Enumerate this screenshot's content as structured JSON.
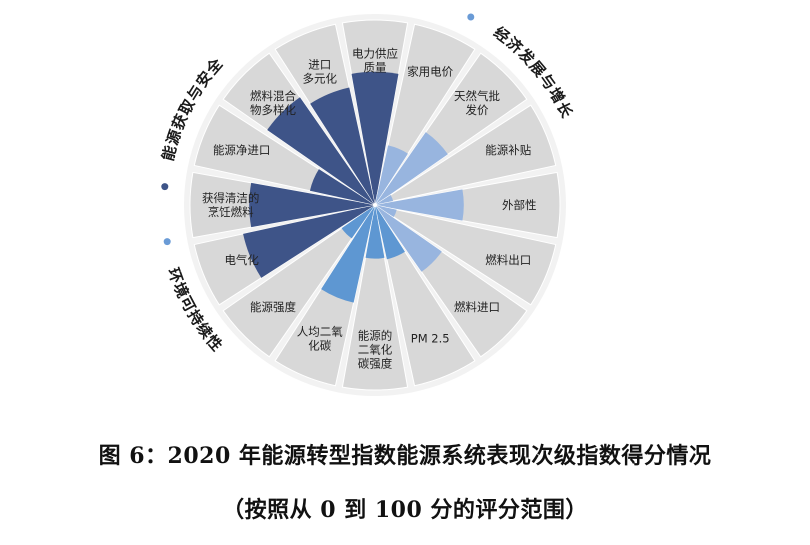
{
  "caption": {
    "line1": "图 6：2020 年能源转型指数能源系统表现次级指数得分情况",
    "line2": "（按照从 0 到 100 分的评分范围）"
  },
  "colors": {
    "wedge_background": "#d8d8d8",
    "dark": "#3e5488",
    "medium": "#5e97d2",
    "light": "#98b5df",
    "text": "#222222",
    "group_label": "#1a1a1a",
    "group_dot": "#3e5488",
    "group_dot_light": "#6a9bd6"
  },
  "chart_data": {
    "type": "polar_area",
    "scale": [
      0,
      100
    ],
    "groups": [
      {
        "name": "经济发展与增长",
        "dot_color": "#6a9bd6"
      },
      {
        "name": "环境可持续性",
        "dot_color": "#6a9bd6"
      },
      {
        "name": "能源获取与安全",
        "dot_color": "#3e5488"
      }
    ],
    "sectors": [
      {
        "label": "电力供应质量",
        "group": "能源获取与安全",
        "value": 72,
        "color": "#3e5488"
      },
      {
        "label": "家用电价",
        "group": "经济发展与增长",
        "value": 33,
        "color": "#98b5df"
      },
      {
        "label": "天然气批发价",
        "group": "经济发展与增长",
        "value": 48,
        "color": "#98b5df"
      },
      {
        "label": "能源补贴",
        "group": "经济发展与增长",
        "value": 10,
        "color": "#98b5df"
      },
      {
        "label": "外部性",
        "group": "经济发展与增长",
        "value": 48,
        "color": "#98b5df"
      },
      {
        "label": "燃料出口",
        "group": "经济发展与增长",
        "value": 12,
        "color": "#98b5df"
      },
      {
        "label": "燃料进口",
        "group": "经济发展与增长",
        "value": 44,
        "color": "#98b5df"
      },
      {
        "label": "PM 2.5",
        "group": "环境可持续性",
        "value": 30,
        "color": "#5e97d2"
      },
      {
        "label": "能源的二氧化碳强度",
        "group": "环境可持续性",
        "value": 29,
        "color": "#5e97d2"
      },
      {
        "label": "人均二氧化碳",
        "group": "环境可持续性",
        "value": 54,
        "color": "#5e97d2"
      },
      {
        "label": "能源强度",
        "group": "环境可持续性",
        "value": 22,
        "color": "#5e97d2"
      },
      {
        "label": "电气化",
        "group": "能源获取与安全",
        "value": 73,
        "color": "#3e5488"
      },
      {
        "label": "获得清洁的烹饪燃料",
        "group": "能源获取与安全",
        "value": 68,
        "color": "#3e5488"
      },
      {
        "label": "能源净进口",
        "group": "能源获取与安全",
        "value": 36,
        "color": "#3e5488"
      },
      {
        "label": "燃料混合物多样化",
        "group": "能源获取与安全",
        "value": 71,
        "color": "#3e5488"
      },
      {
        "label": "进口多元化",
        "group": "能源获取与安全",
        "value": 65,
        "color": "#3e5488"
      }
    ]
  }
}
